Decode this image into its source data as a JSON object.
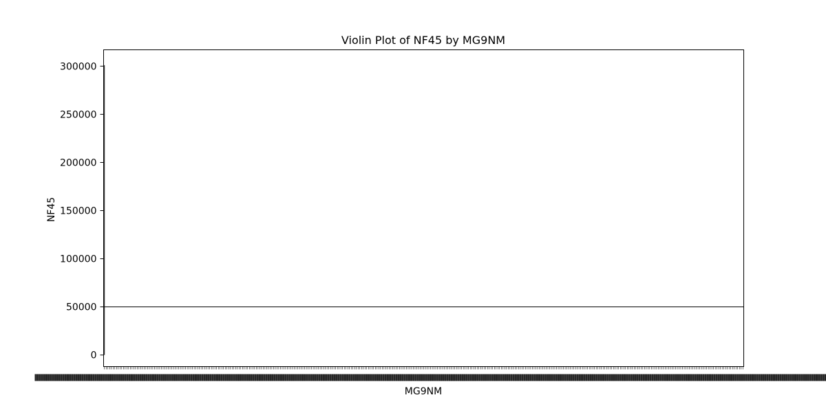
{
  "chart_data": {
    "type": "violin",
    "title": "Violin Plot of NF45 by MG9NM",
    "xlabel": "MG9NM",
    "ylabel": "NF45",
    "ylim": [
      -12000,
      317000
    ],
    "y_ticks": [
      0,
      50000,
      100000,
      150000,
      200000,
      250000,
      300000
    ],
    "y_tick_labels": [
      "0",
      "50000",
      "100000",
      "150000",
      "200000",
      "250000",
      "300000"
    ],
    "x_tick_count": 371,
    "x_tick_labels_note": "",
    "series": [
      {
        "values_summary": {
          "first_category_range": [
            0,
            301000
          ],
          "median_line_value": 50000
        }
      }
    ],
    "grid": false,
    "legend": "none"
  },
  "colors": {
    "axis": "#000000",
    "median_line": "#000000",
    "violin_fill": "#4c72b0"
  }
}
